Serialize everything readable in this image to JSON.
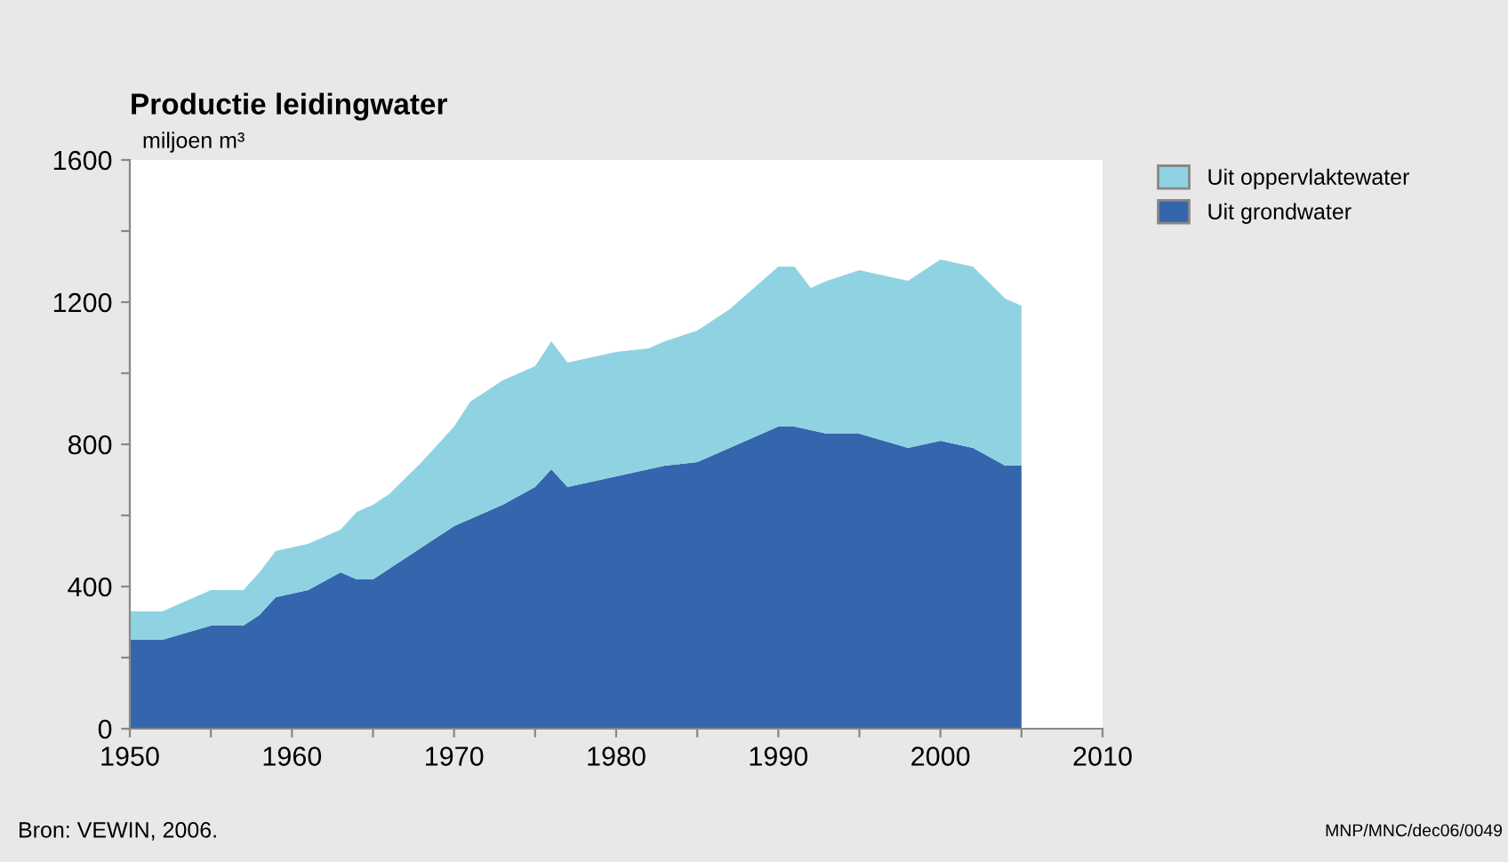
{
  "chart_data": {
    "type": "area",
    "stacked": true,
    "title": "Productie leidingwater",
    "ylabel": "miljoen m³",
    "x": [
      1950,
      1952,
      1955,
      1957,
      1958,
      1959,
      1961,
      1963,
      1964,
      1965,
      1966,
      1968,
      1970,
      1971,
      1973,
      1975,
      1976,
      1977,
      1980,
      1982,
      1983,
      1985,
      1987,
      1990,
      1991,
      1992,
      1993,
      1995,
      1998,
      2000,
      2002,
      2004,
      2005
    ],
    "series": [
      {
        "name": "Uit grondwater",
        "color": "#3566ad",
        "values": [
          250,
          250,
          290,
          290,
          320,
          370,
          390,
          440,
          420,
          420,
          450,
          510,
          570,
          590,
          630,
          680,
          730,
          680,
          710,
          730,
          740,
          750,
          790,
          850,
          850,
          840,
          830,
          830,
          790,
          810,
          790,
          740,
          740
        ]
      },
      {
        "name": "Uit oppervlaktewater",
        "color": "#8fd3e3",
        "values": [
          80,
          80,
          100,
          100,
          120,
          130,
          130,
          120,
          190,
          210,
          210,
          240,
          280,
          330,
          350,
          340,
          360,
          350,
          350,
          340,
          350,
          370,
          390,
          450,
          450,
          400,
          430,
          460,
          470,
          510,
          510,
          470,
          450
        ]
      }
    ],
    "xlim": [
      1950,
      2010
    ],
    "ylim": [
      0,
      1600
    ],
    "xticks": [
      1950,
      {
        "value": 1955,
        "label": null
      },
      1960,
      {
        "value": 1965,
        "label": null
      },
      1970,
      {
        "value": 1975,
        "label": null
      },
      1980,
      {
        "value": 1985,
        "label": null
      },
      1990,
      {
        "value": 1995,
        "label": null
      },
      2000,
      {
        "value": 2005,
        "label": null
      },
      2010
    ],
    "yticks": [
      0,
      {
        "value": 200,
        "label": null
      },
      400,
      {
        "value": 600,
        "label": null
      },
      800,
      {
        "value": 1000,
        "label": null
      },
      1200,
      {
        "value": 1400,
        "label": null
      },
      1600
    ],
    "grid": false,
    "legend": "top right",
    "annotations": [
      "Bron: VEWIN, 2006.",
      "MNP/MNC/dec06/0049"
    ]
  }
}
